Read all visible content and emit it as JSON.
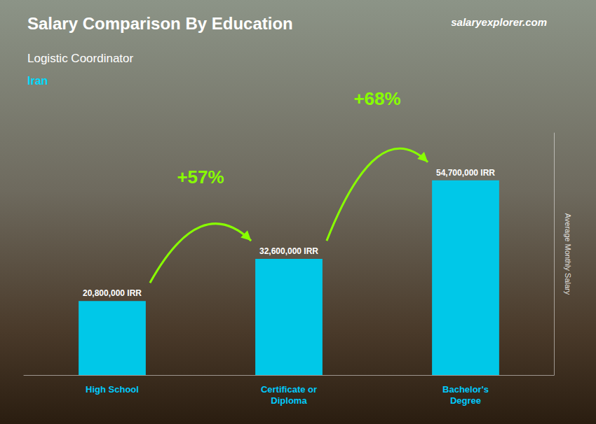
{
  "chart_data": {
    "type": "bar",
    "title": "Salary Comparison By Education",
    "subtitle": "Logistic Coordinator",
    "country": "Iran",
    "watermark": "salaryexplorer.com",
    "ylabel": "Average Monthly Salary",
    "categories": [
      "High School",
      "Certificate or\nDiploma",
      "Bachelor's\nDegree"
    ],
    "values": [
      20800000,
      32600000,
      54700000
    ],
    "value_labels": [
      "20,800,000 IRR",
      "32,600,000 IRR",
      "54,700,000 IRR"
    ],
    "data_labels": true,
    "annotations": [
      "+57%",
      "+68%"
    ],
    "color": "#00c8e8",
    "ylim": [
      0,
      68000000
    ],
    "grid": false,
    "tick_labels": "x"
  }
}
